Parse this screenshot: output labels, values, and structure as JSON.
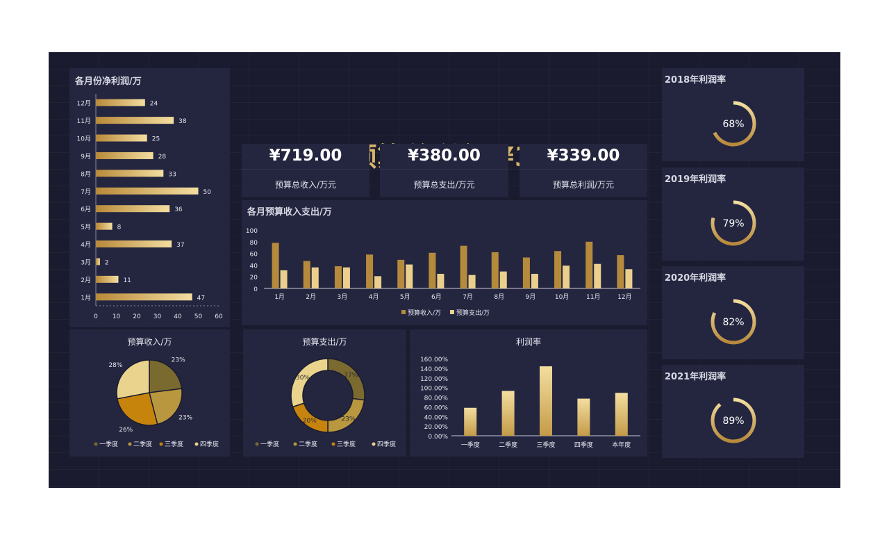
{
  "hero": {
    "title": "预算总利润 ¥339 万元"
  },
  "kpis": [
    {
      "value": "¥719.00",
      "label": "预算总收入/万元"
    },
    {
      "value": "¥380.00",
      "label": "预算总支出/万元"
    },
    {
      "value": "¥339.00",
      "label": "预算总利润/万元"
    }
  ],
  "colors": {
    "background": "#1a1b2e",
    "panel": "#242640",
    "gold": "#d8b66a",
    "gold_light": "#f0dc9a",
    "gold_dark": "#b8893a"
  },
  "chart_data": [
    {
      "id": "net_profit",
      "type": "bar",
      "orientation": "horizontal",
      "title": "各月份净利润/万",
      "categories": [
        "1月",
        "2月",
        "3月",
        "4月",
        "5月",
        "6月",
        "7月",
        "8月",
        "9月",
        "10月",
        "11月",
        "12月"
      ],
      "values": [
        47,
        11,
        2,
        37,
        8,
        36,
        50,
        33,
        28,
        25,
        38,
        24
      ],
      "xlim": [
        0,
        60
      ],
      "xticks": [
        "0",
        "10",
        "20",
        "30",
        "40",
        "50",
        "60"
      ]
    },
    {
      "id": "income_expense",
      "type": "bar",
      "title": "各月预算收入支出/万",
      "categories": [
        "1月",
        "2月",
        "3月",
        "4月",
        "5月",
        "6月",
        "7月",
        "8月",
        "9月",
        "10月",
        "11月",
        "12月"
      ],
      "series": [
        {
          "name": "预算收入/万",
          "values": [
            78,
            47,
            38,
            58,
            49,
            61,
            73,
            62,
            53,
            64,
            80,
            57
          ]
        },
        {
          "name": "预算支出/万",
          "values": [
            31,
            36,
            36,
            21,
            41,
            25,
            23,
            29,
            25,
            39,
            42,
            33
          ]
        }
      ],
      "ylim": [
        0,
        100
      ],
      "yticks": [
        "0",
        "20",
        "40",
        "60",
        "80",
        "100"
      ],
      "legend": "bottom"
    },
    {
      "id": "income_pie",
      "type": "pie",
      "title": "预算收入/万",
      "labels": [
        "一季度",
        "二季度",
        "三季度",
        "四季度"
      ],
      "values": [
        23,
        23,
        26,
        28
      ],
      "value_labels": [
        "23%",
        "23%",
        "26%",
        "28%"
      ],
      "legend": "bottom"
    },
    {
      "id": "expense_donut",
      "type": "pie",
      "donut": true,
      "title": "预算支出/万",
      "labels": [
        "一季度",
        "二季度",
        "三季度",
        "四季度"
      ],
      "values": [
        27,
        23,
        20,
        30
      ],
      "value_labels": [
        "27%",
        "23%",
        "20%",
        "30%"
      ],
      "legend": "bottom"
    },
    {
      "id": "profit_rate",
      "type": "bar",
      "title": "利润率",
      "categories": [
        "一季度",
        "二季度",
        "三季度",
        "四季度",
        "本年度"
      ],
      "values": [
        58,
        93,
        144,
        77,
        89
      ],
      "ylim": [
        0,
        160
      ],
      "yticks": [
        "0.00%",
        "20.00%",
        "40.00%",
        "60.00%",
        "80.00%",
        "100.00%",
        "120.00%",
        "140.00%",
        "160.00%"
      ]
    }
  ],
  "yearly_rates": [
    {
      "title": "2018年利润率",
      "value": 0.68,
      "label": "68%"
    },
    {
      "title": "2019年利润率",
      "value": 0.79,
      "label": "79%"
    },
    {
      "title": "2020年利润率",
      "value": 0.82,
      "label": "82%"
    },
    {
      "title": "2021年利润率",
      "value": 0.89,
      "label": "89%"
    }
  ]
}
